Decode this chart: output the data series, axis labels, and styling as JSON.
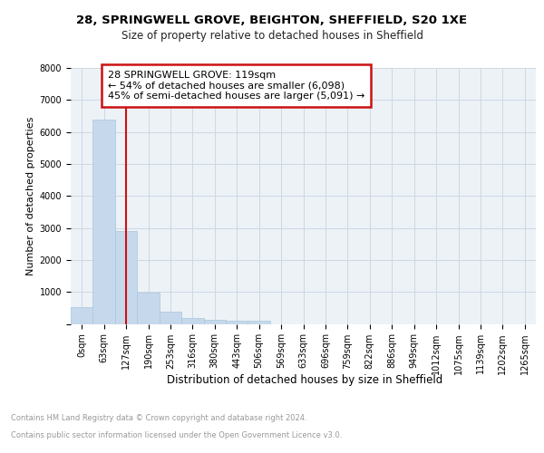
{
  "title1": "28, SPRINGWELL GROVE, BEIGHTON, SHEFFIELD, S20 1XE",
  "title2": "Size of property relative to detached houses in Sheffield",
  "xlabel": "Distribution of detached houses by size in Sheffield",
  "ylabel": "Number of detached properties",
  "bar_labels": [
    "0sqm",
    "63sqm",
    "127sqm",
    "190sqm",
    "253sqm",
    "316sqm",
    "380sqm",
    "443sqm",
    "506sqm",
    "569sqm",
    "633sqm",
    "696sqm",
    "759sqm",
    "822sqm",
    "886sqm",
    "949sqm",
    "1012sqm",
    "1075sqm",
    "1139sqm",
    "1202sqm",
    "1265sqm"
  ],
  "bar_values": [
    510,
    6400,
    2900,
    970,
    370,
    170,
    120,
    110,
    95,
    0,
    0,
    0,
    0,
    0,
    0,
    0,
    0,
    0,
    0,
    0,
    0
  ],
  "bar_color": "#c6d9ec",
  "bar_edge_color": "#a8c4dc",
  "grid_color": "#cdd8e3",
  "bg_color": "#edf2f7",
  "vline_color": "#cc1111",
  "vline_x_index": 2,
  "annotation_line1": "28 SPRINGWELL GROVE: 119sqm",
  "annotation_line2": "← 54% of detached houses are smaller (6,098)",
  "annotation_line3": "45% of semi-detached houses are larger (5,091) →",
  "annotation_box_edgecolor": "#cc1111",
  "footer1": "Contains HM Land Registry data © Crown copyright and database right 2024.",
  "footer2": "Contains public sector information licensed under the Open Government Licence v3.0.",
  "ylim": [
    0,
    8000
  ],
  "yticks": [
    0,
    1000,
    2000,
    3000,
    4000,
    5000,
    6000,
    7000,
    8000
  ],
  "title1_fontsize": 9.5,
  "title2_fontsize": 8.5,
  "ylabel_fontsize": 8,
  "xlabel_fontsize": 8.5,
  "tick_fontsize": 7,
  "footer_fontsize": 6,
  "annotation_fontsize": 8
}
